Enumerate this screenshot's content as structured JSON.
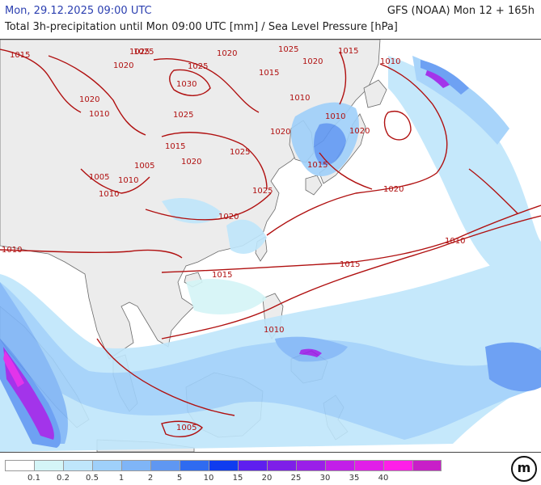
{
  "header": {
    "date": "Mon, 29.12.2025 09:00 UTC",
    "model": "GFS (NOAA) Mon 12 + 165h",
    "subtitle": "Total 3h-precipitation until Mon 09:00 UTC [mm] / Sea Level Pressure [hPa]"
  },
  "legend": {
    "colors": [
      "#ffffff",
      "#d4f5f7",
      "#bfe6fb",
      "#9fd0fa",
      "#7fb5f7",
      "#5f97f2",
      "#2f6bf0",
      "#0f3cef",
      "#5e1fef",
      "#7e1fe8",
      "#9a1fe8",
      "#c21fe8",
      "#e11fe8",
      "#ff1fe8",
      "#c81fc8"
    ],
    "tick_labels": [
      "0.1",
      "0.2",
      "0.5",
      "1",
      "2",
      "5",
      "10",
      "15",
      "20",
      "25",
      "30",
      "35",
      "40"
    ]
  },
  "isobar_labels": [
    {
      "text": "1015"
    },
    {
      "text": "1020"
    },
    {
      "text": "1025"
    },
    {
      "text": "1030"
    },
    {
      "text": "1025"
    },
    {
      "text": "1020"
    },
    {
      "text": "1020"
    },
    {
      "text": "1010"
    },
    {
      "text": "1025"
    },
    {
      "text": "1015"
    },
    {
      "text": "1020"
    },
    {
      "text": "1025"
    },
    {
      "text": "1020"
    },
    {
      "text": "1015"
    },
    {
      "text": "1025"
    },
    {
      "text": "1020"
    },
    {
      "text": "1015"
    },
    {
      "text": "1010"
    },
    {
      "text": "1015"
    },
    {
      "text": "1010"
    },
    {
      "text": "1005"
    },
    {
      "text": "1010"
    },
    {
      "text": "1005"
    },
    {
      "text": "1010"
    },
    {
      "text": "1025"
    },
    {
      "text": "1020"
    },
    {
      "text": "1015"
    },
    {
      "text": "1010"
    },
    {
      "text": "1010"
    },
    {
      "text": "1015"
    },
    {
      "text": "1020"
    },
    {
      "text": "1020"
    },
    {
      "text": "1010"
    },
    {
      "text": "1010"
    },
    {
      "text": "1005"
    },
    {
      "text": "1025"
    }
  ],
  "logo_text": "m"
}
